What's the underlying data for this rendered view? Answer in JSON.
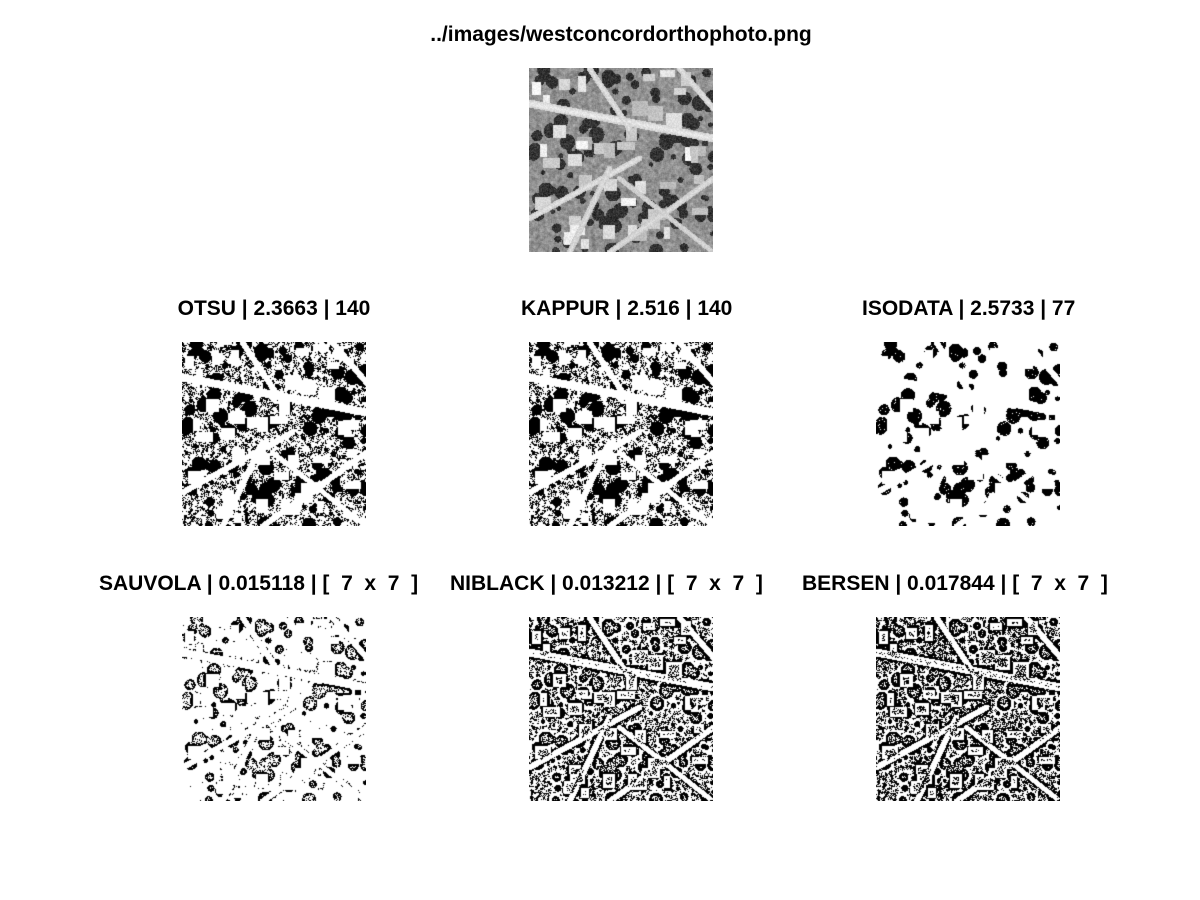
{
  "figure": {
    "title": "../images/westconcordorthophoto.png"
  },
  "panels": [
    {
      "key": "otsu",
      "title": "OTSU | 2.3663 | 140",
      "style": "binary-global",
      "dark_fraction": 0.45
    },
    {
      "key": "kappur",
      "title": "KAPPUR | 2.516 | 140",
      "style": "binary-global",
      "dark_fraction": 0.45
    },
    {
      "key": "isodata",
      "title": "ISODATA | 2.5733 | 77",
      "style": "binary-sparse",
      "dark_fraction": 0.15
    },
    {
      "key": "sauvola",
      "title": "SAUVOLA | 0.015118 | [  7  x  7  ]",
      "style": "edges-sparse",
      "dark_fraction": 0.12
    },
    {
      "key": "niblack",
      "title": "NIBLACK | 0.013212 | [  7  x  7  ]",
      "style": "edges-dense",
      "dark_fraction": 0.45
    },
    {
      "key": "bersen",
      "title": "BERSEN | 0.017844 | [  7  x  7  ]",
      "style": "edges-dense",
      "dark_fraction": 0.5
    }
  ],
  "colors": {
    "background": "#ffffff",
    "foreground": "#000000"
  }
}
